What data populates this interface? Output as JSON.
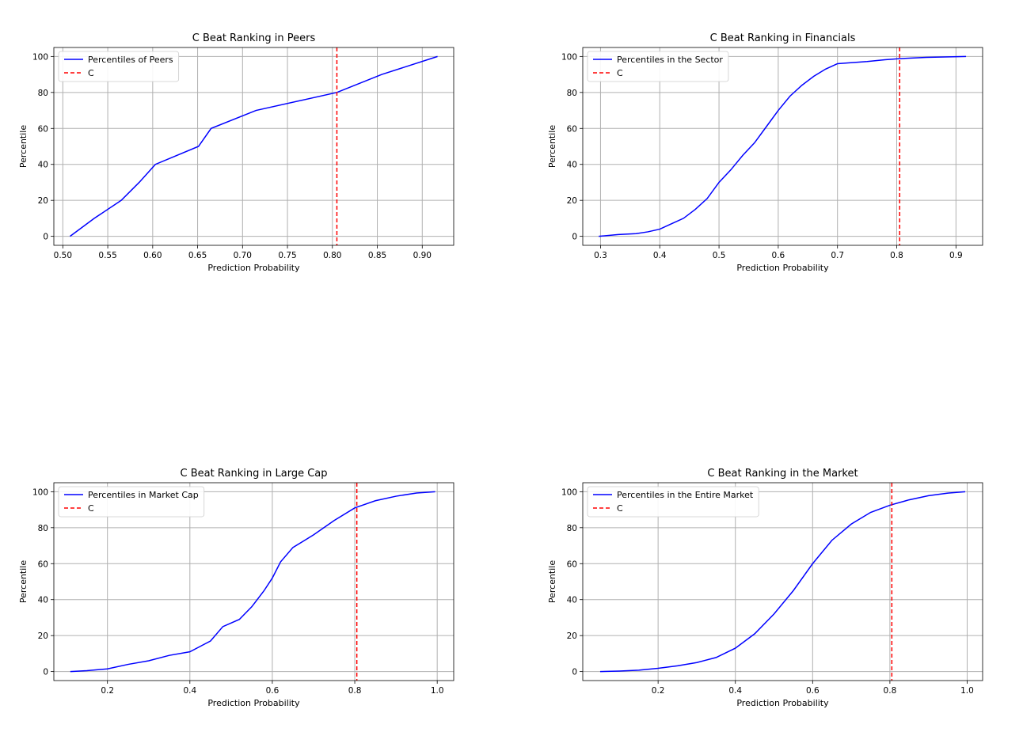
{
  "chart_data": [
    {
      "type": "line",
      "title": "C Beat Ranking in Peers",
      "xlabel": "Prediction Probability",
      "ylabel": "Percentile",
      "xlim": [
        0.49,
        0.935
      ],
      "ylim": [
        -5,
        105
      ],
      "xticks": [
        0.5,
        0.55,
        0.6,
        0.65,
        0.7,
        0.75,
        0.8,
        0.85,
        0.9
      ],
      "xtick_labels": [
        "0.50",
        "0.55",
        "0.60",
        "0.65",
        "0.70",
        "0.75",
        "0.80",
        "0.85",
        "0.90"
      ],
      "yticks": [
        0,
        20,
        40,
        60,
        80,
        100
      ],
      "ytick_labels": [
        "0",
        "20",
        "40",
        "60",
        "80",
        "100"
      ],
      "grid": true,
      "legend_position": "top-left",
      "series": [
        {
          "name": "Percentiles of Peers",
          "color": "#0000ff",
          "style": "solid",
          "x": [
            0.508,
            0.535,
            0.565,
            0.585,
            0.603,
            0.651,
            0.665,
            0.715,
            0.805,
            0.855,
            0.917
          ],
          "y": [
            0,
            10,
            20,
            30,
            40,
            50,
            60,
            70,
            80,
            90,
            100
          ]
        }
      ],
      "vline": {
        "name": "C",
        "x": 0.805,
        "color": "#ff0000",
        "style": "dashed"
      }
    },
    {
      "type": "line",
      "title": "C Beat Ranking in Financials",
      "xlabel": "Prediction Probability",
      "ylabel": "Percentile",
      "xlim": [
        0.27,
        0.945
      ],
      "ylim": [
        -5,
        105
      ],
      "xticks": [
        0.3,
        0.4,
        0.5,
        0.6,
        0.7,
        0.8,
        0.9
      ],
      "xtick_labels": [
        "0.3",
        "0.4",
        "0.5",
        "0.6",
        "0.7",
        "0.8",
        "0.9"
      ],
      "yticks": [
        0,
        20,
        40,
        60,
        80,
        100
      ],
      "ytick_labels": [
        "0",
        "20",
        "40",
        "60",
        "80",
        "100"
      ],
      "grid": true,
      "legend_position": "top-left",
      "series": [
        {
          "name": "Percentiles in the Sector",
          "color": "#0000ff",
          "style": "solid",
          "x": [
            0.297,
            0.33,
            0.36,
            0.38,
            0.4,
            0.42,
            0.44,
            0.46,
            0.48,
            0.5,
            0.52,
            0.54,
            0.56,
            0.58,
            0.6,
            0.62,
            0.64,
            0.66,
            0.68,
            0.7,
            0.72,
            0.75,
            0.78,
            0.8,
            0.85,
            0.917
          ],
          "y": [
            0,
            1,
            1.5,
            2.5,
            4,
            7,
            10,
            15,
            21,
            30,
            37,
            45,
            52,
            61,
            70,
            78,
            84,
            89,
            93,
            96,
            96.5,
            97.2,
            98.2,
            98.7,
            99.5,
            100
          ]
        }
      ],
      "vline": {
        "name": "C",
        "x": 0.805,
        "color": "#ff0000",
        "style": "dashed"
      }
    },
    {
      "type": "line",
      "title": "C Beat Ranking in Large Cap",
      "xlabel": "Prediction Probability",
      "ylabel": "Percentile",
      "xlim": [
        0.07,
        1.04
      ],
      "ylim": [
        -5,
        105
      ],
      "xticks": [
        0.2,
        0.4,
        0.6,
        0.8,
        1.0
      ],
      "xtick_labels": [
        "0.2",
        "0.4",
        "0.6",
        "0.8",
        "1.0"
      ],
      "yticks": [
        0,
        20,
        40,
        60,
        80,
        100
      ],
      "ytick_labels": [
        "0",
        "20",
        "40",
        "60",
        "80",
        "100"
      ],
      "grid": true,
      "legend_position": "top-left",
      "series": [
        {
          "name": "Percentiles in Market Cap",
          "color": "#0000ff",
          "style": "solid",
          "x": [
            0.11,
            0.15,
            0.2,
            0.25,
            0.3,
            0.35,
            0.4,
            0.45,
            0.48,
            0.52,
            0.55,
            0.58,
            0.6,
            0.62,
            0.65,
            0.7,
            0.75,
            0.8,
            0.85,
            0.9,
            0.95,
            0.995
          ],
          "y": [
            0,
            0.5,
            1.5,
            4,
            6,
            9,
            11,
            17,
            25,
            29,
            36,
            45,
            52,
            61,
            69,
            76,
            84,
            91,
            95,
            97.5,
            99.3,
            100
          ]
        }
      ],
      "vline": {
        "name": "C",
        "x": 0.805,
        "color": "#ff0000",
        "style": "dashed"
      }
    },
    {
      "type": "line",
      "title": "C Beat Ranking in the Market",
      "xlabel": "Prediction Probability",
      "ylabel": "Percentile",
      "xlim": [
        0.005,
        1.04
      ],
      "ylim": [
        -5,
        105
      ],
      "xticks": [
        0.2,
        0.4,
        0.6,
        0.8,
        1.0
      ],
      "xtick_labels": [
        "0.2",
        "0.4",
        "0.6",
        "0.8",
        "1.0"
      ],
      "yticks": [
        0,
        20,
        40,
        60,
        80,
        100
      ],
      "ytick_labels": [
        "0",
        "20",
        "40",
        "60",
        "80",
        "100"
      ],
      "grid": true,
      "legend_position": "top-left",
      "series": [
        {
          "name": "Percentiles in the Entire Market",
          "color": "#0000ff",
          "style": "solid",
          "x": [
            0.05,
            0.1,
            0.15,
            0.2,
            0.25,
            0.3,
            0.35,
            0.4,
            0.45,
            0.5,
            0.55,
            0.6,
            0.65,
            0.7,
            0.75,
            0.8,
            0.85,
            0.9,
            0.95,
            0.995
          ],
          "y": [
            0,
            0.3,
            0.8,
            1.8,
            3.2,
            5,
            7.8,
            13,
            21,
            32,
            45,
            60,
            73,
            82,
            88.5,
            92.5,
            95.5,
            97.8,
            99.2,
            100
          ]
        }
      ],
      "vline": {
        "name": "C",
        "x": 0.805,
        "color": "#ff0000",
        "style": "dashed"
      }
    }
  ]
}
